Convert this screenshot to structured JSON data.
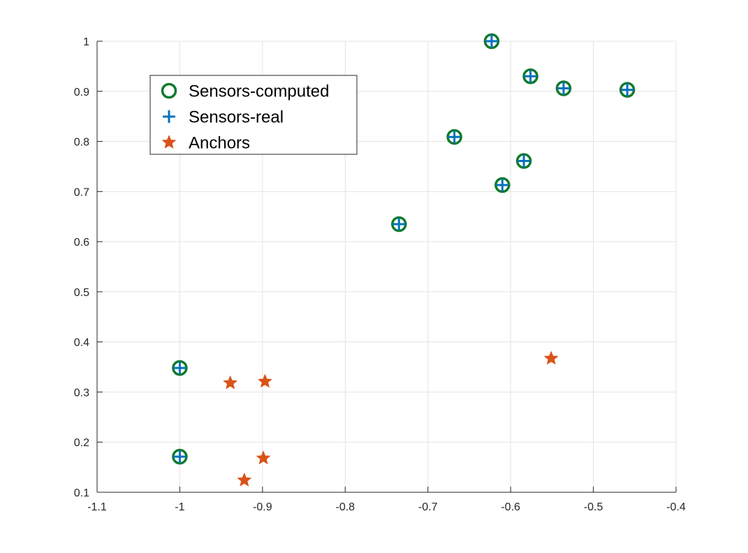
{
  "chart_data": {
    "type": "scatter",
    "title": "",
    "xlabel": "",
    "ylabel": "",
    "xlim": [
      -1.1,
      -0.4
    ],
    "ylim": [
      0.1,
      1.0
    ],
    "x_ticks": [
      -1.1,
      -1.0,
      -0.9,
      -0.8,
      -0.7,
      -0.6,
      -0.5,
      -0.4
    ],
    "y_ticks": [
      0.1,
      0.2,
      0.3,
      0.4,
      0.5,
      0.6,
      0.7,
      0.8,
      0.9,
      1.0
    ],
    "x_tick_labels": [
      "-1.1",
      "-1",
      "-0.9",
      "-0.8",
      "-0.7",
      "-0.6",
      "-0.5",
      "-0.4"
    ],
    "y_tick_labels": [
      "0.1",
      "0.2",
      "0.3",
      "0.4",
      "0.5",
      "0.6",
      "0.7",
      "0.8",
      "0.9",
      "1"
    ],
    "grid": true,
    "legend_position": "top-left",
    "series": [
      {
        "name": "Sensors-computed",
        "marker": "circle",
        "color": "#117a2e",
        "points": [
          {
            "x": -0.623,
            "y": 1.0
          },
          {
            "x": -0.576,
            "y": 0.93
          },
          {
            "x": -0.536,
            "y": 0.906
          },
          {
            "x": -0.459,
            "y": 0.903
          },
          {
            "x": -0.668,
            "y": 0.809
          },
          {
            "x": -0.584,
            "y": 0.761
          },
          {
            "x": -0.61,
            "y": 0.713
          },
          {
            "x": -0.735,
            "y": 0.635
          },
          {
            "x": -1.0,
            "y": 0.348
          },
          {
            "x": -1.0,
            "y": 0.171
          }
        ]
      },
      {
        "name": "Sensors-real",
        "marker": "plus",
        "color": "#0072bd",
        "points": [
          {
            "x": -0.623,
            "y": 1.0
          },
          {
            "x": -0.576,
            "y": 0.93
          },
          {
            "x": -0.536,
            "y": 0.906
          },
          {
            "x": -0.459,
            "y": 0.903
          },
          {
            "x": -0.668,
            "y": 0.809
          },
          {
            "x": -0.584,
            "y": 0.761
          },
          {
            "x": -0.61,
            "y": 0.713
          },
          {
            "x": -0.735,
            "y": 0.635
          },
          {
            "x": -1.0,
            "y": 0.348
          },
          {
            "x": -1.0,
            "y": 0.171
          }
        ]
      },
      {
        "name": "Anchors",
        "marker": "star",
        "color": "#d95319",
        "points": [
          {
            "x": -0.551,
            "y": 0.367
          },
          {
            "x": -0.939,
            "y": 0.318
          },
          {
            "x": -0.897,
            "y": 0.321
          },
          {
            "x": -0.899,
            "y": 0.168
          },
          {
            "x": -0.922,
            "y": 0.124
          }
        ]
      }
    ]
  }
}
